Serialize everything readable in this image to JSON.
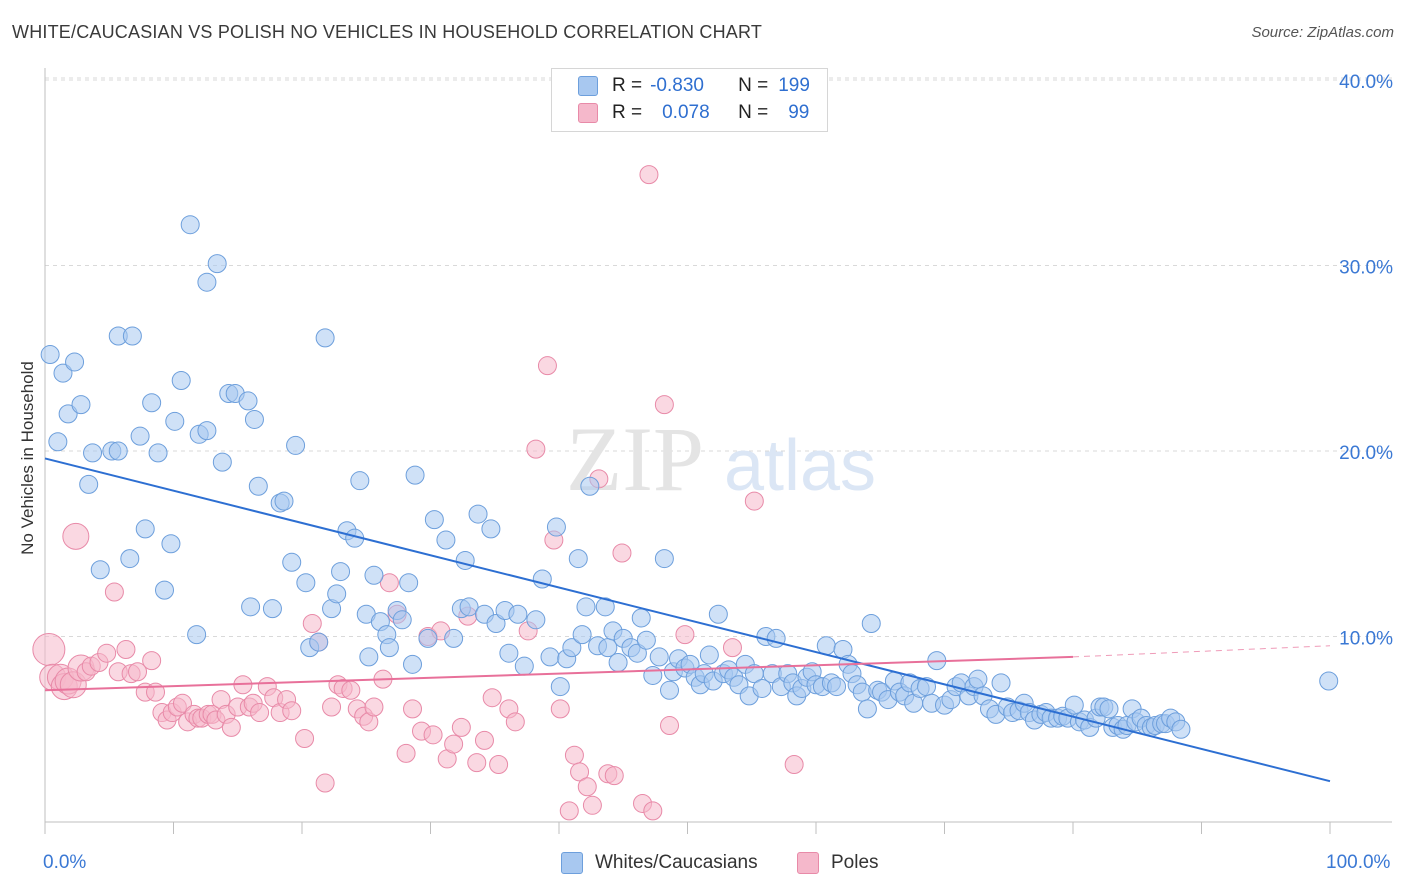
{
  "title": "WHITE/CAUCASIAN VS POLISH NO VEHICLES IN HOUSEHOLD CORRELATION CHART",
  "source": "Source: ZipAtlas.com",
  "watermark": {
    "zip": "ZIP",
    "atlas": "atlas"
  },
  "legend": {
    "rows": [
      {
        "r_label": "R =",
        "r_value": "-0.830",
        "n_label": "N =",
        "n_value": "199",
        "color": "#a8c8f0"
      },
      {
        "r_label": "R =",
        "r_value": "0.078",
        "n_label": "N =",
        "n_value": "99",
        "color": "#f5b8cb"
      }
    ]
  },
  "bottom_legend": {
    "series1": "Whites/Caucasians",
    "series2": "Poles"
  },
  "chart_data": {
    "type": "scatter",
    "title": "WHITE/CAUCASIAN VS POLISH NO VEHICLES IN HOUSEHOLD CORRELATION CHART",
    "xlabel": "",
    "ylabel": "No Vehicles in Household",
    "xlim": [
      0,
      100
    ],
    "ylim": [
      0,
      40
    ],
    "x_tick_labels": [
      "0.0%",
      "100.0%"
    ],
    "y_ticks": [
      10,
      20,
      30,
      40
    ],
    "y_tick_labels": [
      "10.0%",
      "20.0%",
      "30.0%",
      "40.0%"
    ],
    "grid": true,
    "legend_position": "top-center",
    "colors": {
      "whites_fill": "#a8c8f0",
      "whites_stroke": "#6d9fdc",
      "whites_line": "#2d6fd2",
      "poles_fill": "#f5b8cb",
      "poles_stroke": "#e88aa8",
      "poles_line": "#e8709a",
      "tick_text": "#3a78d4"
    },
    "series": [
      {
        "name": "Whites/Caucasians",
        "trend": {
          "x": [
            0,
            100
          ],
          "y": [
            19.6,
            2.2
          ]
        },
        "points": [
          [
            0.4,
            25.2
          ],
          [
            1.0,
            20.5
          ],
          [
            1.4,
            24.2
          ],
          [
            1.8,
            22.0
          ],
          [
            2.3,
            24.8
          ],
          [
            2.8,
            22.5
          ],
          [
            3.4,
            18.2
          ],
          [
            3.7,
            19.9
          ],
          [
            4.3,
            13.6
          ],
          [
            5.2,
            20.0
          ],
          [
            5.7,
            20.0
          ],
          [
            5.7,
            26.2
          ],
          [
            6.6,
            14.2
          ],
          [
            6.8,
            26.2
          ],
          [
            7.4,
            20.8
          ],
          [
            7.8,
            15.8
          ],
          [
            8.3,
            22.6
          ],
          [
            8.8,
            19.9
          ],
          [
            9.3,
            12.5
          ],
          [
            9.8,
            15.0
          ],
          [
            10.1,
            21.6
          ],
          [
            10.6,
            23.8
          ],
          [
            11.3,
            32.2
          ],
          [
            11.8,
            10.1
          ],
          [
            12.0,
            20.9
          ],
          [
            12.6,
            29.1
          ],
          [
            12.6,
            21.1
          ],
          [
            13.4,
            30.1
          ],
          [
            13.8,
            19.4
          ],
          [
            14.3,
            23.1
          ],
          [
            14.8,
            23.1
          ],
          [
            15.8,
            22.7
          ],
          [
            16.0,
            11.6
          ],
          [
            16.3,
            21.7
          ],
          [
            16.6,
            18.1
          ],
          [
            17.7,
            11.5
          ],
          [
            18.3,
            17.2
          ],
          [
            18.6,
            17.3
          ],
          [
            19.2,
            14.0
          ],
          [
            19.5,
            20.3
          ],
          [
            20.3,
            12.9
          ],
          [
            20.6,
            9.4
          ],
          [
            21.3,
            9.7
          ],
          [
            21.8,
            26.1
          ],
          [
            22.3,
            11.5
          ],
          [
            22.7,
            12.3
          ],
          [
            23.0,
            13.5
          ],
          [
            23.5,
            15.7
          ],
          [
            24.1,
            15.3
          ],
          [
            24.5,
            18.4
          ],
          [
            25.0,
            11.2
          ],
          [
            25.2,
            8.9
          ],
          [
            25.6,
            13.3
          ],
          [
            26.1,
            10.8
          ],
          [
            26.6,
            10.1
          ],
          [
            26.8,
            9.4
          ],
          [
            27.4,
            11.4
          ],
          [
            27.8,
            10.9
          ],
          [
            28.3,
            12.9
          ],
          [
            28.6,
            8.5
          ],
          [
            28.8,
            18.7
          ],
          [
            29.8,
            9.9
          ],
          [
            30.3,
            16.3
          ],
          [
            31.2,
            15.2
          ],
          [
            31.8,
            9.9
          ],
          [
            32.4,
            11.5
          ],
          [
            32.7,
            14.1
          ],
          [
            33.0,
            11.6
          ],
          [
            33.7,
            16.6
          ],
          [
            34.2,
            11.2
          ],
          [
            34.7,
            15.8
          ],
          [
            35.1,
            10.7
          ],
          [
            35.8,
            11.4
          ],
          [
            36.1,
            9.1
          ],
          [
            36.8,
            11.2
          ],
          [
            37.3,
            8.4
          ],
          [
            38.2,
            10.9
          ],
          [
            38.7,
            13.1
          ],
          [
            39.3,
            8.9
          ],
          [
            39.8,
            15.9
          ],
          [
            40.1,
            7.3
          ],
          [
            40.6,
            8.8
          ],
          [
            41.0,
            9.4
          ],
          [
            41.5,
            14.2
          ],
          [
            41.8,
            10.1
          ],
          [
            42.1,
            11.6
          ],
          [
            42.4,
            18.1
          ],
          [
            43.0,
            9.5
          ],
          [
            43.6,
            11.6
          ],
          [
            43.8,
            9.4
          ],
          [
            44.2,
            10.3
          ],
          [
            44.6,
            8.6
          ],
          [
            45.0,
            9.9
          ],
          [
            45.6,
            9.4
          ],
          [
            46.1,
            9.1
          ],
          [
            46.4,
            11.0
          ],
          [
            46.8,
            9.8
          ],
          [
            47.3,
            7.9
          ],
          [
            47.8,
            8.9
          ],
          [
            48.2,
            14.2
          ],
          [
            48.6,
            7.1
          ],
          [
            48.9,
            8.1
          ],
          [
            49.3,
            8.8
          ],
          [
            49.8,
            8.3
          ],
          [
            50.2,
            8.5
          ],
          [
            50.6,
            7.8
          ],
          [
            51.0,
            7.4
          ],
          [
            51.3,
            8.0
          ],
          [
            51.7,
            9.0
          ],
          [
            52.0,
            7.6
          ],
          [
            52.4,
            11.2
          ],
          [
            52.8,
            8.0
          ],
          [
            53.2,
            8.2
          ],
          [
            53.6,
            7.8
          ],
          [
            54.0,
            7.4
          ],
          [
            54.5,
            8.5
          ],
          [
            54.8,
            6.8
          ],
          [
            55.2,
            8.0
          ],
          [
            55.8,
            7.2
          ],
          [
            56.1,
            10.0
          ],
          [
            56.6,
            8.0
          ],
          [
            56.9,
            9.9
          ],
          [
            57.3,
            7.3
          ],
          [
            57.8,
            8.0
          ],
          [
            58.2,
            7.5
          ],
          [
            58.5,
            6.8
          ],
          [
            58.9,
            7.2
          ],
          [
            59.3,
            7.8
          ],
          [
            59.7,
            8.1
          ],
          [
            60.0,
            7.4
          ],
          [
            60.5,
            7.3
          ],
          [
            60.8,
            9.5
          ],
          [
            61.2,
            7.5
          ],
          [
            61.6,
            7.3
          ],
          [
            62.1,
            9.3
          ],
          [
            62.5,
            8.5
          ],
          [
            62.8,
            8.0
          ],
          [
            63.2,
            7.4
          ],
          [
            63.6,
            7.0
          ],
          [
            64.0,
            6.1
          ],
          [
            64.3,
            10.7
          ],
          [
            64.8,
            7.1
          ],
          [
            65.1,
            7.0
          ],
          [
            65.6,
            6.6
          ],
          [
            66.1,
            7.6
          ],
          [
            66.5,
            7.0
          ],
          [
            66.9,
            6.8
          ],
          [
            67.3,
            7.5
          ],
          [
            67.6,
            6.4
          ],
          [
            68.1,
            7.2
          ],
          [
            68.6,
            7.3
          ],
          [
            69.0,
            6.4
          ],
          [
            69.4,
            8.7
          ],
          [
            70.0,
            6.3
          ],
          [
            70.5,
            6.6
          ],
          [
            70.9,
            7.3
          ],
          [
            71.3,
            7.5
          ],
          [
            71.9,
            6.8
          ],
          [
            72.3,
            7.3
          ],
          [
            72.6,
            7.7
          ],
          [
            73.0,
            6.8
          ],
          [
            73.5,
            6.1
          ],
          [
            74.0,
            5.8
          ],
          [
            74.4,
            7.5
          ],
          [
            74.9,
            6.2
          ],
          [
            75.3,
            5.9
          ],
          [
            75.8,
            6.0
          ],
          [
            76.2,
            6.4
          ],
          [
            76.6,
            5.9
          ],
          [
            77.0,
            5.5
          ],
          [
            77.5,
            5.8
          ],
          [
            77.9,
            5.9
          ],
          [
            78.3,
            5.6
          ],
          [
            78.8,
            5.6
          ],
          [
            79.2,
            5.7
          ],
          [
            79.6,
            5.6
          ],
          [
            80.1,
            6.3
          ],
          [
            80.5,
            5.4
          ],
          [
            80.9,
            5.5
          ],
          [
            81.3,
            5.1
          ],
          [
            81.8,
            5.6
          ],
          [
            82.1,
            6.2
          ],
          [
            82.4,
            6.2
          ],
          [
            82.8,
            6.1
          ],
          [
            83.1,
            5.1
          ],
          [
            83.5,
            5.2
          ],
          [
            83.9,
            5.0
          ],
          [
            84.2,
            5.2
          ],
          [
            84.6,
            6.1
          ],
          [
            84.9,
            5.4
          ],
          [
            85.3,
            5.6
          ],
          [
            85.7,
            5.2
          ],
          [
            86.1,
            5.1
          ],
          [
            86.4,
            5.2
          ],
          [
            86.9,
            5.3
          ],
          [
            87.2,
            5.3
          ],
          [
            87.6,
            5.6
          ],
          [
            88.0,
            5.4
          ],
          [
            88.4,
            5.0
          ]
        ]
      },
      {
        "name": "Poles",
        "trend": {
          "x": [
            0,
            80
          ],
          "y": [
            7.1,
            8.9
          ],
          "dashed_x": [
            80,
            100
          ],
          "dashed_y": [
            8.9,
            9.5
          ]
        },
        "points": [
          [
            0.3,
            9.3
          ],
          [
            0.6,
            7.8
          ],
          [
            1.2,
            7.8
          ],
          [
            1.5,
            7.3
          ],
          [
            1.8,
            7.6
          ],
          [
            2.2,
            7.4
          ],
          [
            2.4,
            15.4
          ],
          [
            2.8,
            8.3
          ],
          [
            3.2,
            8.1
          ],
          [
            3.6,
            8.4
          ],
          [
            4.2,
            8.6
          ],
          [
            4.8,
            9.1
          ],
          [
            5.4,
            12.4
          ],
          [
            5.7,
            8.1
          ],
          [
            6.3,
            9.3
          ],
          [
            6.7,
            8.0
          ],
          [
            7.2,
            8.1
          ],
          [
            7.8,
            7.0
          ],
          [
            8.3,
            8.7
          ],
          [
            8.6,
            7.0
          ],
          [
            9.1,
            5.9
          ],
          [
            9.5,
            5.5
          ],
          [
            9.9,
            5.9
          ],
          [
            10.3,
            6.2
          ],
          [
            10.7,
            6.4
          ],
          [
            11.1,
            5.4
          ],
          [
            11.6,
            5.8
          ],
          [
            11.9,
            5.6
          ],
          [
            12.2,
            5.6
          ],
          [
            12.7,
            5.8
          ],
          [
            13.0,
            5.8
          ],
          [
            13.3,
            5.5
          ],
          [
            13.7,
            6.6
          ],
          [
            14.1,
            5.8
          ],
          [
            14.5,
            5.1
          ],
          [
            15.0,
            6.2
          ],
          [
            15.4,
            7.4
          ],
          [
            15.9,
            6.2
          ],
          [
            16.2,
            6.4
          ],
          [
            16.7,
            5.9
          ],
          [
            17.3,
            7.3
          ],
          [
            17.8,
            6.7
          ],
          [
            18.3,
            5.9
          ],
          [
            18.8,
            6.6
          ],
          [
            19.2,
            6.0
          ],
          [
            20.2,
            4.5
          ],
          [
            20.8,
            10.7
          ],
          [
            21.3,
            9.7
          ],
          [
            21.8,
            2.1
          ],
          [
            22.3,
            6.2
          ],
          [
            22.8,
            7.4
          ],
          [
            23.2,
            7.2
          ],
          [
            23.8,
            7.1
          ],
          [
            24.3,
            6.1
          ],
          [
            24.8,
            5.7
          ],
          [
            25.2,
            5.4
          ],
          [
            25.6,
            6.2
          ],
          [
            26.3,
            7.7
          ],
          [
            26.8,
            12.9
          ],
          [
            27.4,
            11.2
          ],
          [
            28.1,
            3.7
          ],
          [
            28.6,
            6.1
          ],
          [
            29.3,
            4.9
          ],
          [
            29.8,
            10.0
          ],
          [
            30.2,
            4.7
          ],
          [
            30.8,
            10.3
          ],
          [
            31.3,
            3.4
          ],
          [
            31.8,
            4.2
          ],
          [
            32.4,
            5.1
          ],
          [
            32.9,
            11.1
          ],
          [
            33.6,
            3.2
          ],
          [
            34.2,
            4.4
          ],
          [
            34.8,
            6.7
          ],
          [
            35.3,
            3.1
          ],
          [
            36.1,
            6.1
          ],
          [
            36.6,
            5.4
          ],
          [
            37.6,
            10.3
          ],
          [
            38.2,
            20.1
          ],
          [
            39.1,
            24.6
          ],
          [
            39.6,
            15.2
          ],
          [
            40.1,
            6.1
          ],
          [
            40.8,
            0.6
          ],
          [
            41.2,
            3.6
          ],
          [
            41.6,
            2.7
          ],
          [
            42.2,
            1.9
          ],
          [
            42.6,
            0.9
          ],
          [
            43.1,
            18.5
          ],
          [
            43.8,
            2.6
          ],
          [
            44.3,
            2.5
          ],
          [
            44.9,
            14.5
          ],
          [
            46.5,
            1.0
          ],
          [
            47.0,
            34.9
          ],
          [
            47.3,
            0.6
          ],
          [
            48.2,
            22.5
          ],
          [
            48.6,
            5.2
          ],
          [
            49.8,
            10.1
          ],
          [
            53.5,
            9.4
          ],
          [
            55.2,
            17.3
          ],
          [
            58.3,
            3.1
          ]
        ]
      }
    ]
  }
}
